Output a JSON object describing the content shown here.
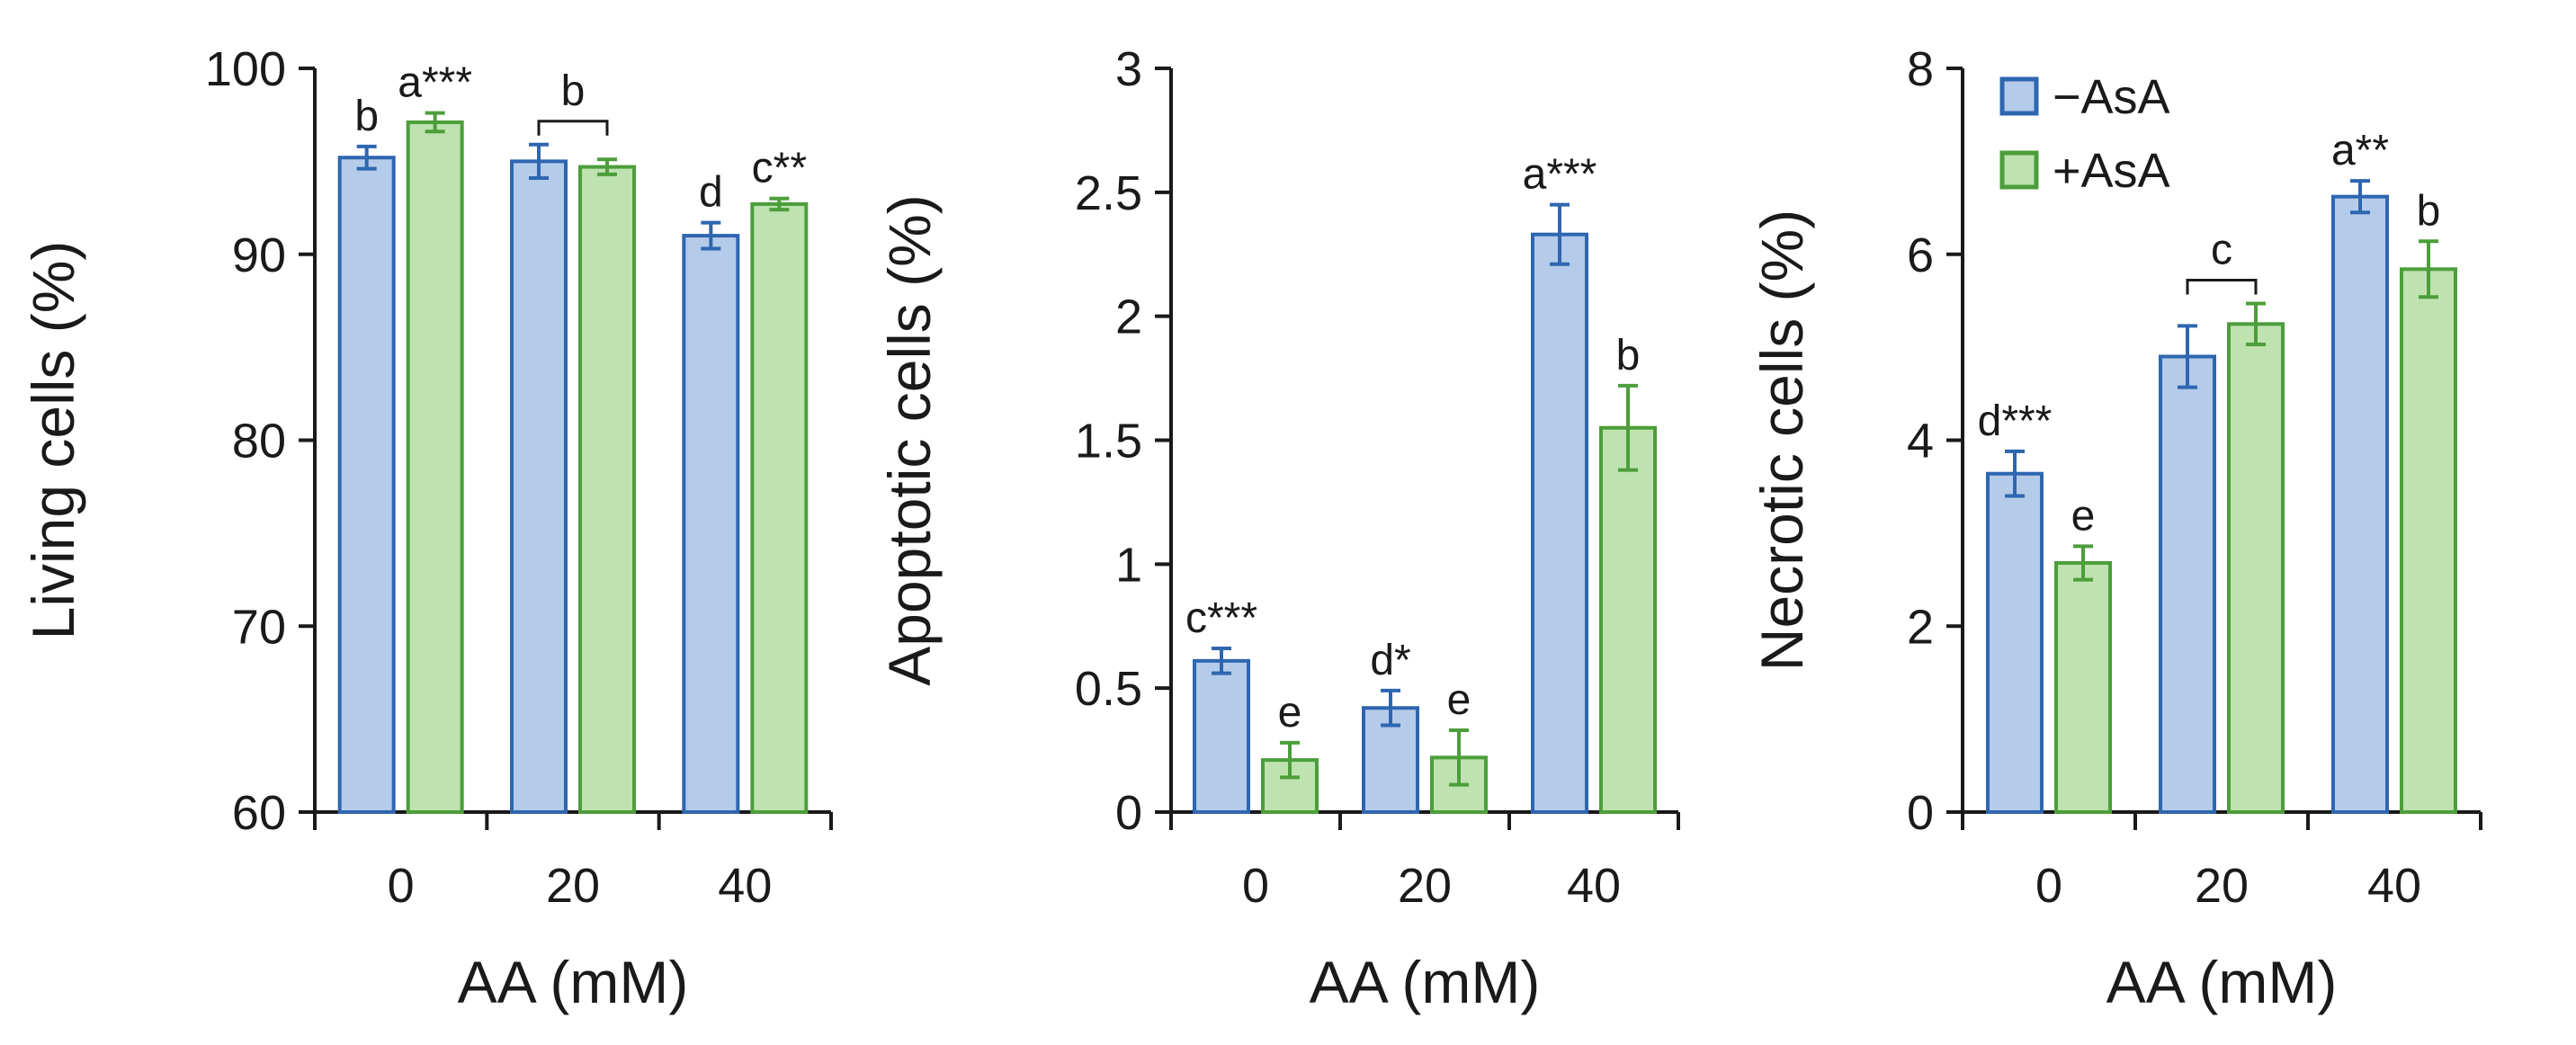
{
  "chart_data": [
    {
      "type": "bar",
      "ylabel": "Living cells (%)",
      "xlabel": "AA (mM)",
      "categories": [
        "0",
        "20",
        "40"
      ],
      "ylim": [
        60,
        100
      ],
      "yticks": [
        "60",
        "70",
        "80",
        "90",
        "100"
      ],
      "series": [
        {
          "name": "−AsA",
          "values": [
            95.2,
            95.0,
            91.0
          ],
          "errors": [
            0.6,
            0.9,
            0.7
          ],
          "labels": [
            "b",
            "",
            "d"
          ]
        },
        {
          "name": "+AsA",
          "values": [
            97.1,
            94.7,
            92.7
          ],
          "errors": [
            0.5,
            0.4,
            0.3
          ],
          "labels": [
            "a***",
            "",
            "c**"
          ]
        }
      ],
      "group_labels": [
        {
          "category_index": 1,
          "text": "b"
        }
      ]
    },
    {
      "type": "bar",
      "ylabel": "Apoptotic cells (%)",
      "xlabel": "AA (mM)",
      "categories": [
        "0",
        "20",
        "40"
      ],
      "ylim": [
        0,
        3
      ],
      "yticks": [
        "0",
        "0.5",
        "1",
        "1.5",
        "2",
        "2.5",
        "3"
      ],
      "series": [
        {
          "name": "−AsA",
          "values": [
            0.61,
            0.42,
            2.33
          ],
          "errors": [
            0.05,
            0.07,
            0.12
          ],
          "labels": [
            "c***",
            "d*",
            "a***"
          ]
        },
        {
          "name": "+AsA",
          "values": [
            0.21,
            0.22,
            1.55
          ],
          "errors": [
            0.07,
            0.11,
            0.17
          ],
          "labels": [
            "e",
            "e",
            "b"
          ]
        }
      ],
      "group_labels": []
    },
    {
      "type": "bar",
      "ylabel": "Necrotic cells (%)",
      "xlabel": "AA (mM)",
      "categories": [
        "0",
        "20",
        "40"
      ],
      "ylim": [
        0,
        8
      ],
      "yticks": [
        "0",
        "2",
        "4",
        "6",
        "8"
      ],
      "series": [
        {
          "name": "−AsA",
          "values": [
            3.64,
            4.9,
            6.62
          ],
          "errors": [
            0.24,
            0.33,
            0.17
          ],
          "labels": [
            "d***",
            "",
            "a**"
          ]
        },
        {
          "name": "+AsA",
          "values": [
            2.68,
            5.25,
            5.84
          ],
          "errors": [
            0.18,
            0.22,
            0.3
          ],
          "labels": [
            "e",
            "",
            "b"
          ]
        }
      ],
      "group_labels": [
        {
          "category_index": 1,
          "text": "c"
        }
      ]
    }
  ],
  "legend": {
    "items": [
      {
        "label": "−AsA"
      },
      {
        "label": "+AsA"
      }
    ]
  },
  "colors": {
    "minus_fill": "#b4cbea",
    "minus_stroke": "#2e66b0",
    "plus_fill": "#bfe2b1",
    "plus_stroke": "#4c9e3a",
    "axis": "#1a1a1a"
  }
}
